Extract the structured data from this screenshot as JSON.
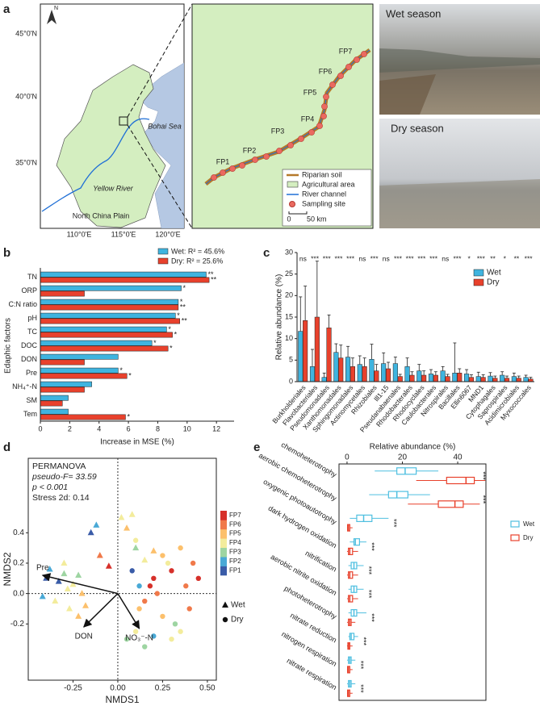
{
  "panel_letters": [
    "a",
    "b",
    "c",
    "d",
    "e"
  ],
  "panel_a": {
    "north": "N",
    "lat_labels": [
      "45°0'N",
      "40°0'N",
      "35°0'N"
    ],
    "lon_labels": [
      "110°0'E",
      "115°0'E",
      "120°0'E"
    ],
    "sea": "Bohai Sea",
    "river": "Yellow River",
    "plain": "North China Plain",
    "sites": [
      "FP1",
      "FP2",
      "FP3",
      "FP4",
      "FP5",
      "FP6",
      "FP7"
    ],
    "legend": [
      "Riparian soil",
      "Agricultural area",
      "River channel",
      "Sampling site"
    ],
    "scale": [
      "0",
      "50 km"
    ],
    "photos": [
      "Wet season",
      "Dry season"
    ]
  },
  "chart_data": [
    {
      "type": "hbar",
      "xlabel": "Increase in MSE (%)",
      "ylabel": "Edaphic factors",
      "categories": [
        "TN",
        "ORP",
        "C:N ratio",
        "pH",
        "TC",
        "DOC",
        "DON",
        "Pre",
        "NH₄⁺-N",
        "SM",
        "Tem"
      ],
      "series": [
        {
          "name": "Wet: R² = 45.6%",
          "color": "#3fb4df",
          "values": [
            11.3,
            9.6,
            9.4,
            9.2,
            8.6,
            7.6,
            5.3,
            5.3,
            3.5,
            1.9,
            1.9
          ],
          "annotations": [
            "**",
            "*",
            "*",
            "*",
            "*",
            "*",
            null,
            "*",
            null,
            null,
            null
          ]
        },
        {
          "name": "Dry: R² = 25.6%",
          "color": "#e8412c",
          "values": [
            11.5,
            3.0,
            9.4,
            9.5,
            9.0,
            8.7,
            3.0,
            5.9,
            3.0,
            1.5,
            5.8
          ],
          "annotations": [
            "**",
            null,
            "**",
            "**",
            "*",
            "*",
            null,
            "*",
            null,
            null,
            "*"
          ]
        }
      ],
      "xlim": [
        0,
        13.2
      ],
      "xticks": [
        0,
        2,
        4,
        6,
        8,
        10,
        12
      ]
    },
    {
      "type": "bar",
      "ylabel": "Relative abundance (%)",
      "categories": [
        "Burkholderiales",
        "Flavobacteriales",
        "Pseudomonadales",
        "Xanthomonadales",
        "Sphingomonadales",
        "Actinomycetales",
        "Rhizobiales",
        "Ill1-15",
        "Pseudanabaenales",
        "Rhodobacterales",
        "Rhodocyclales",
        "Caulobacterales",
        "Nitrospirales",
        "Bacillales",
        "Ellin6067",
        "MND1",
        "Cytophagales",
        "Saprospirales",
        "Acidimicrobiales",
        "Myxococcales"
      ],
      "annotations": [
        "ns",
        "***",
        "***",
        "***",
        "***",
        "ns",
        "***",
        "ns",
        "***",
        "***",
        "***",
        "***",
        "ns",
        "***",
        "*",
        "***",
        "**",
        "*",
        "**",
        "***"
      ],
      "series": [
        {
          "name": "Wet",
          "color": "#3fb4df",
          "values": [
            11.7,
            3.5,
            1.0,
            6.8,
            5.7,
            4.0,
            5.2,
            4.2,
            4.2,
            3.5,
            2.5,
            1.8,
            2.5,
            2.0,
            1.8,
            1.2,
            1.3,
            1.5,
            1.2,
            1.0
          ],
          "errors": [
            8,
            4,
            1,
            2,
            2.5,
            2,
            3.5,
            2.5,
            1.5,
            2,
            1.5,
            1,
            1,
            7,
            1,
            1,
            0.8,
            0.8,
            0.8,
            0.5
          ]
        },
        {
          "name": "Dry",
          "color": "#e8412c",
          "values": [
            14.2,
            15.0,
            12.5,
            5.5,
            3.5,
            3.5,
            2.5,
            3.0,
            1.2,
            1.5,
            1.5,
            1.5,
            1.2,
            2.0,
            1.0,
            1.0,
            0.8,
            0.8,
            0.8,
            0.6
          ],
          "errors": [
            8,
            13,
            3,
            3,
            2,
            2,
            1.5,
            1.5,
            0.5,
            0.8,
            1,
            0.8,
            0.5,
            1,
            0.6,
            0.6,
            0.5,
            0.5,
            0.5,
            0.4
          ]
        }
      ],
      "ylim": [
        0,
        30
      ],
      "yticks": [
        0,
        5,
        10,
        15,
        20,
        25,
        30
      ]
    },
    {
      "type": "scatter",
      "xlabel": "NMDS1",
      "ylabel": "NMDS2",
      "annotations": [
        "PERMANOVA",
        "pseudo-F= 33.59",
        "p < 0.001",
        "Stress 2d: 0.14"
      ],
      "sites": [
        "FP1",
        "FP2",
        "FP3",
        "FP4",
        "FP5",
        "FP6",
        "FP7"
      ],
      "site_colors": [
        "#3a5ca8",
        "#49a9d6",
        "#9ed5a2",
        "#f3ec9c",
        "#fcc06c",
        "#f0794a",
        "#d6302a"
      ],
      "series": [
        {
          "name": "Wet",
          "marker": "triangle",
          "x": [
            -0.4,
            -0.38,
            -0.33,
            -0.3,
            -0.28,
            -0.25,
            -0.22,
            -0.2,
            -0.35,
            -0.27,
            -0.18,
            -0.15,
            -0.12,
            -0.1,
            -0.05,
            0.02,
            0.05,
            0.1,
            0.15,
            0.2,
            -0.42,
            -0.3,
            -0.22,
            0.08
          ],
          "y": [
            0.1,
            0.16,
            0.08,
            0.13,
            0.03,
            0.06,
            0.12,
            0.0,
            -0.05,
            -0.1,
            -0.08,
            0.4,
            0.45,
            0.25,
            0.18,
            0.5,
            0.43,
            0.3,
            0.22,
            0.28,
            -0.02,
            0.2,
            -0.15,
            0.52
          ],
          "site": [
            1,
            2,
            1,
            3,
            4,
            4,
            3,
            5,
            4,
            4,
            5,
            1,
            2,
            6,
            7,
            4,
            5,
            3,
            4,
            5,
            2,
            4,
            5,
            4
          ]
        },
        {
          "name": "Dry",
          "marker": "circle",
          "x": [
            0.05,
            0.1,
            0.12,
            0.15,
            0.18,
            0.2,
            0.22,
            0.25,
            0.28,
            0.3,
            0.32,
            0.35,
            0.38,
            0.4,
            0.45,
            0.1,
            0.15,
            0.2,
            0.25,
            0.3,
            0.08,
            0.12,
            0.35,
            0.42
          ],
          "y": [
            -0.3,
            -0.25,
            -0.1,
            -0.05,
            0.05,
            0.1,
            0.0,
            -0.15,
            0.2,
            0.15,
            -0.2,
            0.3,
            0.05,
            -0.1,
            0.1,
            0.35,
            -0.35,
            -0.28,
            0.25,
            -0.3,
            0.15,
            0.05,
            -0.25,
            0.2
          ],
          "site": [
            3,
            4,
            5,
            6,
            7,
            7,
            6,
            5,
            4,
            7,
            3,
            5,
            6,
            6,
            7,
            4,
            3,
            2,
            5,
            4,
            1,
            2,
            4,
            6
          ]
        }
      ],
      "vectors": [
        {
          "name": "Pre",
          "x": -0.42,
          "y": 0.12
        },
        {
          "name": "DON",
          "x": -0.19,
          "y": -0.22
        },
        {
          "name": "NO₃⁻-N",
          "x": 0.12,
          "y": -0.23
        }
      ],
      "xlim": [
        -0.5,
        0.55
      ],
      "ylim": [
        -0.57,
        0.89
      ],
      "xticks": [
        -0.25,
        {
          "value": 0,
          "label": "0.00"
        },
        0.25,
        {
          "value": 0.5,
          "label": "0.50"
        }
      ],
      "yticks": [
        -0.2,
        {
          "value": 0,
          "label": "0.0"
        },
        0.2,
        0.4
      ]
    },
    {
      "type": "boxplot",
      "xlabel": "Relative abundance (%)",
      "categories": [
        "chemoheterotrophy",
        "aerobic chemoheterotrophy",
        "oxygenic photoautotrophy",
        "dark hydrogen oxidation",
        "nitrification",
        "aerobic nitrite oxidation",
        "photoheterotrophy",
        "nitrate reduction",
        "nitrogen respiration",
        "nitrate respiration"
      ],
      "annotations": [
        "***",
        "***",
        "***",
        "***",
        "***",
        "***",
        "***",
        "***",
        "***",
        "***"
      ],
      "series": [
        {
          "name": "Wet",
          "color": "#4fbfe0",
          "boxes": [
            [
              10,
              18,
              21,
              25,
              33
            ],
            [
              8,
              15,
              18,
              22,
              30
            ],
            [
              1,
              3.5,
              6,
              9,
              15
            ],
            [
              1,
              2.5,
              3,
              4.5,
              7
            ],
            [
              0.5,
              1.5,
              2.5,
              3.5,
              6
            ],
            [
              0.5,
              1.5,
              2.5,
              3.5,
              6
            ],
            [
              0.5,
              1.5,
              2.5,
              3.5,
              7
            ],
            [
              0.5,
              1,
              1.5,
              2.5,
              4
            ],
            [
              0,
              0.5,
              1,
              1.5,
              3
            ],
            [
              0,
              0.5,
              1,
              1.5,
              3
            ]
          ]
        },
        {
          "name": "Dry",
          "color": "#e8412c",
          "boxes": [
            [
              25,
              36,
              43,
              46,
              50
            ],
            [
              22,
              33,
              39,
              42,
              48
            ],
            [
              0,
              0.2,
              0.5,
              1,
              2
            ],
            [
              0,
              0.5,
              1,
              2,
              4
            ],
            [
              0,
              0.5,
              1,
              2,
              4
            ],
            [
              0,
              0.5,
              1,
              2,
              4
            ],
            [
              0,
              0.5,
              1,
              1.5,
              3
            ],
            [
              0,
              0.3,
              0.6,
              1,
              2
            ],
            [
              0,
              0.2,
              0.5,
              1,
              2
            ],
            [
              0,
              0.2,
              0.5,
              1,
              2
            ]
          ]
        }
      ],
      "xlim": [
        -2.9,
        50.2
      ],
      "xticks": [
        0,
        20,
        40
      ]
    }
  ]
}
